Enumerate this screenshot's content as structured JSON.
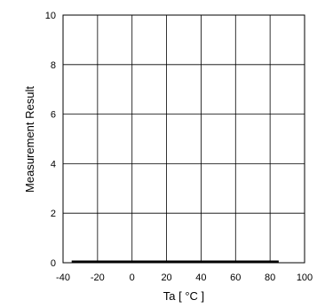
{
  "chart_data": {
    "type": "line",
    "title": "",
    "xlabel": "Ta [ °C ]",
    "ylabel": "Measurement Result",
    "xlim": [
      -40,
      100
    ],
    "ylim": [
      0,
      10
    ],
    "xticks": [
      -40,
      -20,
      0,
      20,
      40,
      60,
      80,
      100
    ],
    "yticks": [
      0,
      2,
      4,
      6,
      8,
      10
    ],
    "grid": true,
    "legend": "none",
    "series": [
      {
        "color": "#000000",
        "x": [
          -35,
          85
        ],
        "y": [
          0,
          0
        ]
      }
    ]
  }
}
